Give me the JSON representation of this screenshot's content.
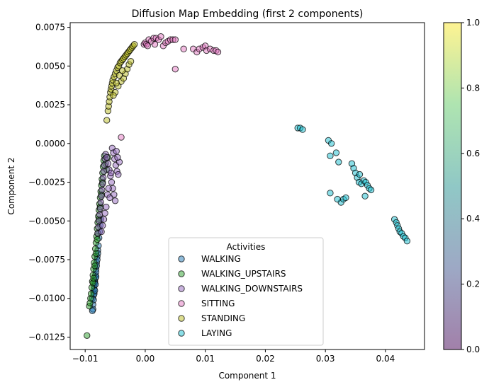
{
  "chart_data": {
    "type": "scatter",
    "title": "Diffusion Map Embedding (first 2 components)",
    "xlabel": "Component 1",
    "ylabel": "Component 2",
    "xlim": [
      -0.0125,
      0.0465
    ],
    "ylim": [
      -0.0133,
      0.0078
    ],
    "xticks": [
      -0.01,
      0.0,
      0.01,
      0.02,
      0.03,
      0.04
    ],
    "xtick_labels": [
      "−0.01",
      "0.00",
      "0.01",
      "0.02",
      "0.03",
      "0.04"
    ],
    "yticks": [
      -0.0125,
      -0.01,
      -0.0075,
      -0.005,
      -0.0025,
      0.0,
      0.0025,
      0.005,
      0.0075
    ],
    "ytick_labels": [
      "−0.0125",
      "−0.0100",
      "−0.0075",
      "−0.0050",
      "−0.0025",
      "0.0000",
      "0.0025",
      "0.0050",
      "0.0075"
    ],
    "grid": false,
    "legend": {
      "title": "Activities",
      "placement": "lower center"
    },
    "colorbar": {
      "ticks": [
        0.0,
        0.2,
        0.4,
        0.6,
        0.8,
        1.0
      ],
      "tick_labels": [
        "0.0",
        "0.2",
        "0.4",
        "0.6",
        "0.8",
        "1.0"
      ],
      "range": [
        0,
        1
      ],
      "colormap": "viridis"
    },
    "series": [
      {
        "name": "WALKING",
        "color": "#1f77b4",
        "points": [
          [
            -0.0088,
            -0.01
          ],
          [
            -0.0086,
            -0.0096
          ],
          [
            -0.0085,
            -0.0092
          ],
          [
            -0.0087,
            -0.0104
          ],
          [
            -0.0084,
            -0.0089
          ],
          [
            -0.0083,
            -0.0085
          ],
          [
            -0.0086,
            -0.0098
          ],
          [
            -0.0082,
            -0.0081
          ],
          [
            -0.0085,
            -0.0094
          ],
          [
            -0.0081,
            -0.0077
          ],
          [
            -0.0084,
            -0.009
          ],
          [
            -0.008,
            -0.0073
          ],
          [
            -0.0079,
            -0.0069
          ],
          [
            -0.0083,
            -0.0087
          ],
          [
            -0.0087,
            -0.0107
          ],
          [
            -0.0078,
            -0.0066
          ],
          [
            -0.0082,
            -0.0083
          ],
          [
            -0.0077,
            -0.0061
          ],
          [
            -0.0081,
            -0.0079
          ],
          [
            -0.0076,
            -0.0057
          ],
          [
            -0.008,
            -0.0075
          ],
          [
            -0.0075,
            -0.0053
          ],
          [
            -0.0079,
            -0.0071
          ],
          [
            -0.0074,
            -0.0049
          ],
          [
            -0.0086,
            -0.0101
          ],
          [
            -0.0088,
            -0.0108
          ],
          [
            -0.0085,
            -0.0097
          ],
          [
            -0.0083,
            -0.0091
          ],
          [
            -0.0082,
            -0.0086
          ],
          [
            -0.0084,
            -0.0095
          ]
        ]
      },
      {
        "name": "WALKING_UPSTAIRS",
        "color": "#2ca02c",
        "points": [
          [
            -0.0097,
            -0.0124
          ],
          [
            -0.0093,
            -0.0105
          ],
          [
            -0.0092,
            -0.0103
          ],
          [
            -0.0091,
            -0.01
          ],
          [
            -0.009,
            -0.0097
          ],
          [
            -0.0089,
            -0.0093
          ],
          [
            -0.0088,
            -0.0089
          ],
          [
            -0.0087,
            -0.0085
          ],
          [
            -0.0086,
            -0.0081
          ],
          [
            -0.0085,
            -0.0077
          ],
          [
            -0.0084,
            -0.0073
          ],
          [
            -0.0083,
            -0.0068
          ],
          [
            -0.0082,
            -0.0064
          ],
          [
            -0.0081,
            -0.006
          ],
          [
            -0.008,
            -0.0055
          ],
          [
            -0.0079,
            -0.0051
          ],
          [
            -0.0078,
            -0.0047
          ],
          [
            -0.0077,
            -0.0043
          ],
          [
            -0.0076,
            -0.0039
          ],
          [
            -0.0075,
            -0.0035
          ],
          [
            -0.0074,
            -0.0031
          ],
          [
            -0.0073,
            -0.0027
          ],
          [
            -0.0072,
            -0.0023
          ],
          [
            -0.0071,
            -0.0019
          ],
          [
            -0.007,
            -0.0015
          ],
          [
            -0.0069,
            -0.0011
          ],
          [
            -0.0068,
            -0.0008
          ],
          [
            -0.0062,
            -0.0009
          ],
          [
            -0.0066,
            -0.0013
          ],
          [
            -0.0064,
            -0.0017
          ],
          [
            -0.0087,
            -0.009
          ],
          [
            -0.0086,
            -0.0087
          ],
          [
            -0.0084,
            -0.0079
          ],
          [
            -0.0082,
            -0.0071
          ],
          [
            -0.008,
            -0.0062
          ],
          [
            -0.0079,
            -0.0058
          ],
          [
            -0.0077,
            -0.0049
          ],
          [
            -0.0075,
            -0.0041
          ],
          [
            -0.0073,
            -0.0033
          ],
          [
            -0.0071,
            -0.0025
          ]
        ]
      },
      {
        "name": "WALKING_DOWNSTAIRS",
        "color": "#9467bd",
        "points": [
          [
            -0.0079,
            -0.0058
          ],
          [
            -0.0078,
            -0.0054
          ],
          [
            -0.0077,
            -0.005
          ],
          [
            -0.0076,
            -0.0046
          ],
          [
            -0.0075,
            -0.0042
          ],
          [
            -0.0074,
            -0.0038
          ],
          [
            -0.0073,
            -0.0034
          ],
          [
            -0.0072,
            -0.003
          ],
          [
            -0.0071,
            -0.0026
          ],
          [
            -0.007,
            -0.0022
          ],
          [
            -0.0069,
            -0.0018
          ],
          [
            -0.0068,
            -0.0014
          ],
          [
            -0.0067,
            -0.001
          ],
          [
            -0.0066,
            -0.0007
          ],
          [
            -0.0064,
            -0.0009
          ],
          [
            -0.0062,
            -0.0013
          ],
          [
            -0.006,
            -0.0017
          ],
          [
            -0.0058,
            -0.0021
          ],
          [
            -0.0056,
            -0.0025
          ],
          [
            -0.0054,
            -0.0029
          ],
          [
            -0.0052,
            -0.0033
          ],
          [
            -0.005,
            -0.0037
          ],
          [
            -0.0055,
            -0.0003
          ],
          [
            -0.0053,
            -0.0006
          ],
          [
            -0.0051,
            -0.001
          ],
          [
            -0.0049,
            -0.0014
          ],
          [
            -0.0047,
            -0.0018
          ],
          [
            -0.0045,
            -0.002
          ],
          [
            -0.0043,
            -0.0012
          ],
          [
            -0.0046,
            -0.0009
          ],
          [
            -0.0063,
            -0.0033
          ],
          [
            -0.0061,
            -0.0029
          ],
          [
            -0.0059,
            -0.0035
          ],
          [
            -0.0065,
            -0.0041
          ],
          [
            -0.0067,
            -0.0045
          ],
          [
            -0.0069,
            -0.0049
          ],
          [
            -0.0071,
            -0.0053
          ],
          [
            -0.0073,
            -0.0057
          ],
          [
            -0.0057,
            -0.0019
          ],
          [
            -0.0048,
            -0.0005
          ]
        ]
      },
      {
        "name": "SITTING",
        "color": "#e377c2",
        "points": [
          [
            -0.004,
            0.0004
          ],
          [
            -0.0002,
            0.0064
          ],
          [
            0.0,
            0.0065
          ],
          [
            0.0002,
            0.0064
          ],
          [
            0.0006,
            0.0067
          ],
          [
            0.001,
            0.0066
          ],
          [
            0.0014,
            0.0068
          ],
          [
            0.0018,
            0.0068
          ],
          [
            0.0022,
            0.0067
          ],
          [
            0.0026,
            0.0069
          ],
          [
            0.003,
            0.0063
          ],
          [
            0.0034,
            0.0065
          ],
          [
            0.0038,
            0.0066
          ],
          [
            0.0042,
            0.0067
          ],
          [
            0.0046,
            0.0067
          ],
          [
            0.005,
            0.0067
          ],
          [
            0.005,
            0.0048
          ],
          [
            0.0064,
            0.0061
          ],
          [
            0.008,
            0.0061
          ],
          [
            0.0086,
            0.0059
          ],
          [
            0.009,
            0.0061
          ],
          [
            0.0096,
            0.0062
          ],
          [
            0.01,
            0.0063
          ],
          [
            0.0102,
            0.006
          ],
          [
            0.0108,
            0.0061
          ],
          [
            0.0114,
            0.006
          ],
          [
            0.0118,
            0.006
          ],
          [
            0.0121,
            0.0059
          ],
          [
            0.0004,
            0.0063
          ],
          [
            0.0016,
            0.0064
          ]
        ]
      },
      {
        "name": "STANDING",
        "color": "#bcbd22",
        "points": [
          [
            -0.0064,
            0.0015
          ],
          [
            -0.0062,
            0.0021
          ],
          [
            -0.0061,
            0.0024
          ],
          [
            -0.006,
            0.0027
          ],
          [
            -0.0059,
            0.003
          ],
          [
            -0.0058,
            0.0033
          ],
          [
            -0.0057,
            0.0035
          ],
          [
            -0.0056,
            0.0037
          ],
          [
            -0.0055,
            0.0039
          ],
          [
            -0.0054,
            0.0041
          ],
          [
            -0.0052,
            0.0043
          ],
          [
            -0.005,
            0.0045
          ],
          [
            -0.0048,
            0.0047
          ],
          [
            -0.0046,
            0.0049
          ],
          [
            -0.0044,
            0.005
          ],
          [
            -0.0042,
            0.0052
          ],
          [
            -0.004,
            0.0053
          ],
          [
            -0.0038,
            0.0054
          ],
          [
            -0.0036,
            0.0055
          ],
          [
            -0.0034,
            0.0056
          ],
          [
            -0.0032,
            0.0057
          ],
          [
            -0.003,
            0.0058
          ],
          [
            -0.0028,
            0.0059
          ],
          [
            -0.0026,
            0.006
          ],
          [
            -0.0024,
            0.0061
          ],
          [
            -0.0022,
            0.0062
          ],
          [
            -0.002,
            0.0063
          ],
          [
            -0.0018,
            0.0064
          ],
          [
            -0.0045,
            0.0037
          ],
          [
            -0.004,
            0.004
          ],
          [
            -0.0036,
            0.0042
          ],
          [
            -0.0033,
            0.0045
          ],
          [
            -0.003,
            0.0048
          ],
          [
            -0.0027,
            0.0051
          ],
          [
            -0.0024,
            0.0053
          ],
          [
            -0.005,
            0.0033
          ],
          [
            -0.0053,
            0.0031
          ],
          [
            -0.0048,
            0.0039
          ],
          [
            -0.0043,
            0.0044
          ],
          [
            -0.0038,
            0.0047
          ]
        ]
      },
      {
        "name": "LAYING",
        "color": "#17becf",
        "points": [
          [
            0.0254,
            0.001
          ],
          [
            0.0258,
            0.001
          ],
          [
            0.0262,
            0.0009
          ],
          [
            0.0305,
            0.0002
          ],
          [
            0.031,
            0.0
          ],
          [
            0.0308,
            -0.0008
          ],
          [
            0.0318,
            -0.0006
          ],
          [
            0.0322,
            -0.0012
          ],
          [
            0.0308,
            -0.0032
          ],
          [
            0.0326,
            -0.0038
          ],
          [
            0.033,
            -0.0036
          ],
          [
            0.0334,
            -0.0035
          ],
          [
            0.0344,
            -0.0013
          ],
          [
            0.0347,
            -0.0016
          ],
          [
            0.035,
            -0.0019
          ],
          [
            0.0353,
            -0.0022
          ],
          [
            0.0356,
            -0.0025
          ],
          [
            0.036,
            -0.0026
          ],
          [
            0.0364,
            -0.0024
          ],
          [
            0.0367,
            -0.0025
          ],
          [
            0.037,
            -0.0027
          ],
          [
            0.0373,
            -0.0029
          ],
          [
            0.0376,
            -0.003
          ],
          [
            0.0366,
            -0.0034
          ],
          [
            0.0415,
            -0.0049
          ],
          [
            0.0418,
            -0.0051
          ],
          [
            0.042,
            -0.0053
          ],
          [
            0.0422,
            -0.0055
          ],
          [
            0.0424,
            -0.0057
          ],
          [
            0.0427,
            -0.0058
          ],
          [
            0.043,
            -0.006
          ],
          [
            0.0433,
            -0.0061
          ],
          [
            0.0436,
            -0.0063
          ],
          [
            0.032,
            -0.0036
          ],
          [
            0.0357,
            -0.002
          ]
        ]
      }
    ]
  }
}
